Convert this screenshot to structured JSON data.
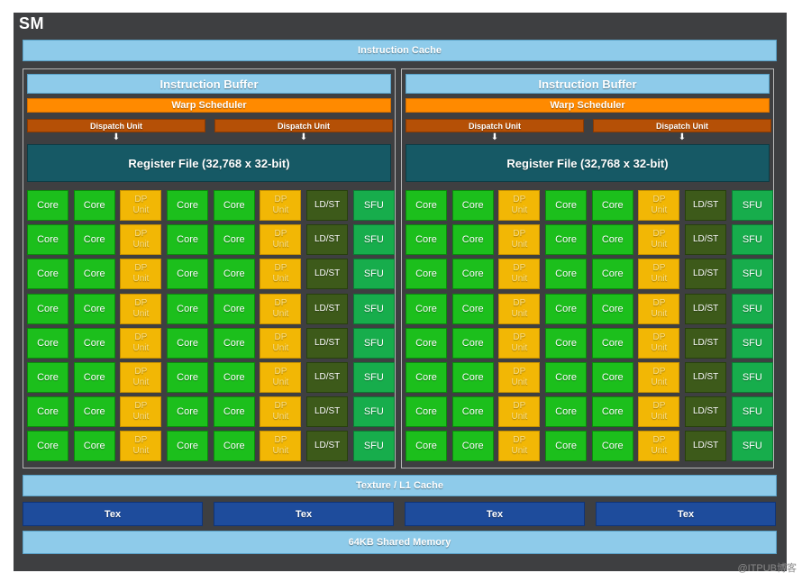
{
  "sm": {
    "title": "SM",
    "instruction_cache": "Instruction Cache",
    "texture_cache": "Texture / L1 Cache",
    "shared_memory": "64KB Shared Memory",
    "tex_units": [
      "Tex",
      "Tex",
      "Tex",
      "Tex"
    ]
  },
  "partitions": [
    {
      "instruction_buffer": "Instruction Buffer",
      "warp_scheduler": "Warp Scheduler",
      "dispatch_units": [
        "Dispatch Unit",
        "Dispatch Unit"
      ],
      "register_file": "Register File (32,768 x 32-bit)"
    },
    {
      "instruction_buffer": "Instruction Buffer",
      "warp_scheduler": "Warp Scheduler",
      "dispatch_units": [
        "Dispatch Unit",
        "Dispatch Unit"
      ],
      "register_file": "Register File (32,768 x 32-bit)"
    }
  ],
  "unit_grid": {
    "rows": 8,
    "row_pattern": [
      "core",
      "core",
      "dp",
      "core",
      "core",
      "dp",
      "ldst",
      "sfu"
    ],
    "labels": {
      "core": "Core",
      "dp": "DP\nUnit",
      "ldst": "LD/ST",
      "sfu": "SFU"
    }
  },
  "arrow_glyph": "⬇",
  "watermark": "@ITPUB博客",
  "colors": {
    "core": "#1cbf1c",
    "dp_unit": "#f2b705",
    "ldst": "#3d5a1a",
    "sfu": "#17ad4c",
    "warp_scheduler": "#ff8a00",
    "dispatch_unit": "#b55006",
    "register_file": "#165965",
    "cache": "#8ecbea",
    "tex": "#1e4c9c",
    "sm_background": "#3e3f41"
  }
}
